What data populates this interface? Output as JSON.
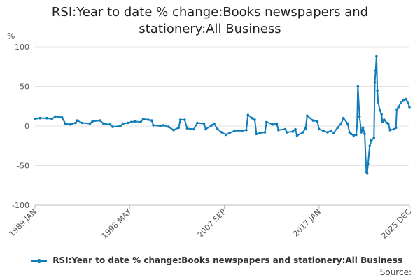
{
  "chart_data": {
    "type": "line",
    "title_line1": "RSI:Year to date % change:Books newspapers and",
    "title_line2": "stationery:All Business",
    "ylabel": "%",
    "ylim": [
      -100,
      100
    ],
    "y_ticks": [
      100,
      50,
      0,
      -50,
      -100
    ],
    "x_ticks": [
      "1989 JAN",
      "1998 MAY",
      "2007 SEP",
      "2017 JAN",
      "2025 DEC"
    ],
    "x_range": [
      "1989-01",
      "2025-12"
    ],
    "grid": true,
    "legend_position": "bottom",
    "color": "#0f7bb8",
    "series": [
      {
        "name": "RSI:Year to date % change:Books newspapers and stationery:All Business",
        "points": [
          [
            "1989-01",
            9
          ],
          [
            "1989-07",
            10
          ],
          [
            "1990-03",
            10
          ],
          [
            "1990-09",
            9
          ],
          [
            "1991-01",
            12
          ],
          [
            "1991-09",
            11
          ],
          [
            "1992-01",
            3
          ],
          [
            "1992-07",
            2
          ],
          [
            "1993-01",
            4
          ],
          [
            "1993-03",
            7
          ],
          [
            "1993-09",
            4
          ],
          [
            "1994-06",
            3
          ],
          [
            "1994-09",
            6
          ],
          [
            "1995-06",
            7
          ],
          [
            "1995-10",
            3
          ],
          [
            "1996-06",
            2
          ],
          [
            "1996-09",
            -1
          ],
          [
            "1997-06",
            0
          ],
          [
            "1997-09",
            3
          ],
          [
            "1998-03",
            4
          ],
          [
            "1998-07",
            5
          ],
          [
            "1998-11",
            6
          ],
          [
            "1999-06",
            5
          ],
          [
            "1999-09",
            9
          ],
          [
            "2000-03",
            8
          ],
          [
            "2000-07",
            7
          ],
          [
            "2000-09",
            1
          ],
          [
            "2001-06",
            0
          ],
          [
            "2001-09",
            1
          ],
          [
            "2002-03",
            -1
          ],
          [
            "2002-09",
            -5
          ],
          [
            "2003-03",
            -2
          ],
          [
            "2003-05",
            8
          ],
          [
            "2003-10",
            8
          ],
          [
            "2004-01",
            -3
          ],
          [
            "2004-09",
            -4
          ],
          [
            "2005-01",
            4
          ],
          [
            "2005-09",
            3
          ],
          [
            "2005-11",
            -4
          ],
          [
            "2006-06",
            1
          ],
          [
            "2006-09",
            3
          ],
          [
            "2007-01",
            -4
          ],
          [
            "2007-06",
            -8
          ],
          [
            "2007-11",
            -11
          ],
          [
            "2008-03",
            -9
          ],
          [
            "2008-09",
            -6
          ],
          [
            "2009-06",
            -6
          ],
          [
            "2009-11",
            -5
          ],
          [
            "2010-01",
            14
          ],
          [
            "2010-06",
            10
          ],
          [
            "2010-09",
            8
          ],
          [
            "2010-11",
            -10
          ],
          [
            "2011-03",
            -9
          ],
          [
            "2011-09",
            -8
          ],
          [
            "2011-11",
            5
          ],
          [
            "2012-06",
            2
          ],
          [
            "2012-11",
            3
          ],
          [
            "2013-01",
            -5
          ],
          [
            "2013-09",
            -4
          ],
          [
            "2013-11",
            -8
          ],
          [
            "2014-06",
            -7
          ],
          [
            "2014-09",
            -4
          ],
          [
            "2014-11",
            -12
          ],
          [
            "2015-06",
            -8
          ],
          [
            "2015-09",
            -3
          ],
          [
            "2015-11",
            13
          ],
          [
            "2016-06",
            7
          ],
          [
            "2016-11",
            6
          ],
          [
            "2017-01",
            -4
          ],
          [
            "2017-06",
            -6
          ],
          [
            "2017-11",
            -8
          ],
          [
            "2018-03",
            -6
          ],
          [
            "2018-06",
            -9
          ],
          [
            "2018-11",
            -2
          ],
          [
            "2019-03",
            3
          ],
          [
            "2019-06",
            10
          ],
          [
            "2019-11",
            3
          ],
          [
            "2020-01",
            -8
          ],
          [
            "2020-03",
            -10
          ],
          [
            "2020-06",
            -12
          ],
          [
            "2020-09",
            -11
          ],
          [
            "2020-10",
            0
          ],
          [
            "2020-11",
            50
          ],
          [
            "2021-01",
            12
          ],
          [
            "2021-03",
            -8
          ],
          [
            "2021-05",
            -2
          ],
          [
            "2021-07",
            -10
          ],
          [
            "2021-09",
            -58
          ],
          [
            "2021-10",
            -60
          ],
          [
            "2021-11",
            -48
          ],
          [
            "2022-01",
            -25
          ],
          [
            "2022-03",
            -18
          ],
          [
            "2022-06",
            -15
          ],
          [
            "2022-07",
            55
          ],
          [
            "2022-08",
            70
          ],
          [
            "2022-09",
            88
          ],
          [
            "2022-10",
            45
          ],
          [
            "2022-11",
            30
          ],
          [
            "2023-01",
            20
          ],
          [
            "2023-03",
            15
          ],
          [
            "2023-04",
            5
          ],
          [
            "2023-06",
            8
          ],
          [
            "2023-09",
            4
          ],
          [
            "2023-11",
            3
          ],
          [
            "2024-01",
            -5
          ],
          [
            "2024-06",
            -4
          ],
          [
            "2024-08",
            -2
          ],
          [
            "2024-09",
            21
          ],
          [
            "2024-11",
            24
          ],
          [
            "2025-02",
            30
          ],
          [
            "2025-05",
            33
          ],
          [
            "2025-08",
            34
          ],
          [
            "2025-10",
            30
          ],
          [
            "2025-12",
            24
          ]
        ]
      }
    ]
  },
  "legend": {
    "label": "RSI:Year to date % change:Books newspapers and stationery:All Business"
  },
  "source_label": "Source:"
}
